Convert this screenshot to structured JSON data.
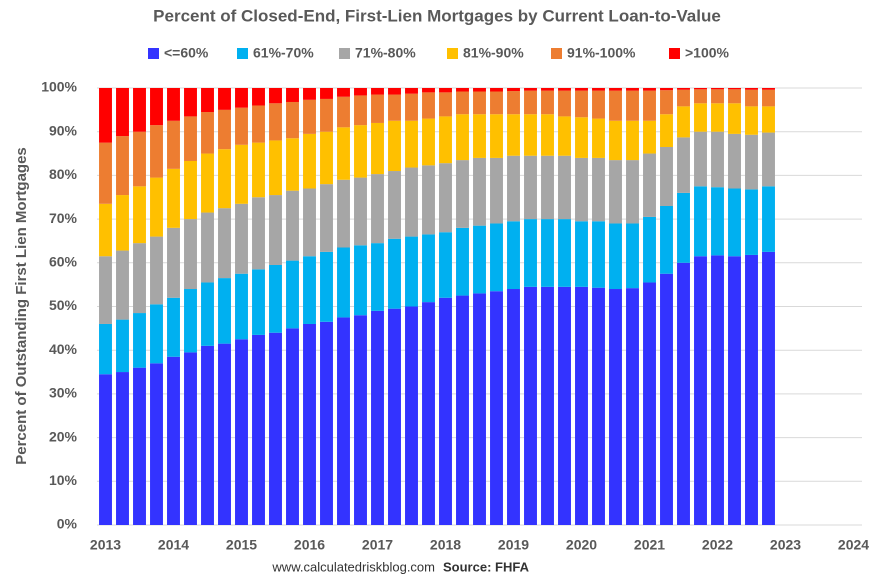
{
  "chart_data": {
    "type": "stacked_bar",
    "title": "Percent of Closed-End, First-Lien Mortgages by Current Loan-to-Value",
    "y_label": "Percent of Outstanding First Lien Mortgages",
    "footer": [
      "www.calculatedriskblog.com",
      "Source: FHFA"
    ],
    "x": [
      2013,
      2013.25,
      2013.5,
      2013.75,
      2014,
      2014.25,
      2014.5,
      2014.75,
      2015,
      2015.25,
      2015.5,
      2015.75,
      2016,
      2016.25,
      2016.5,
      2016.75,
      2017,
      2017.25,
      2017.5,
      2017.75,
      2018,
      2018.25,
      2018.5,
      2018.75,
      2019,
      2019.25,
      2019.5,
      2019.75,
      2020,
      2020.25,
      2020.5,
      2020.75,
      2021,
      2021.25,
      2021.5,
      2021.75,
      2022,
      2022.25,
      2022.5,
      2022.75
    ],
    "xlim": [
      2012.875,
      2024.125
    ],
    "xticks": [
      2013,
      2014,
      2015,
      2016,
      2017,
      2018,
      2019,
      2020,
      2021,
      2022,
      2023,
      2024
    ],
    "ylim": [
      0,
      100
    ],
    "yticks": [
      {
        "value": 0,
        "label": "0%"
      },
      {
        "value": 10,
        "label": "10%"
      },
      {
        "value": 20,
        "label": "20%"
      },
      {
        "value": 30,
        "label": "30%"
      },
      {
        "value": 40,
        "label": "40%"
      },
      {
        "value": 50,
        "label": "50%"
      },
      {
        "value": 60,
        "label": "60%"
      },
      {
        "value": 70,
        "label": "70%"
      },
      {
        "value": 80,
        "label": "80%"
      },
      {
        "value": 90,
        "label": "90%"
      },
      {
        "value": 100,
        "label": "100%"
      }
    ],
    "grid": true,
    "legend": "top",
    "series": [
      {
        "name": "<=60%",
        "color": "#3333ff",
        "values": [
          34.5,
          35,
          36,
          37,
          38.5,
          39.5,
          41,
          41.5,
          42.5,
          43.5,
          44,
          45,
          46,
          46.5,
          47.5,
          48,
          49,
          49.5,
          50,
          51,
          52,
          52.5,
          53,
          53.5,
          54,
          54.5,
          54.5,
          54.5,
          54.5,
          54.3,
          54,
          54.2,
          55.5,
          57.5,
          60,
          61.5,
          61.7,
          61.5,
          61.8,
          62.5
        ]
      },
      {
        "name": "61%-70%",
        "color": "#00b0f0",
        "values": [
          11.5,
          12,
          12.5,
          13.5,
          13.5,
          14.5,
          14.5,
          15,
          15,
          15,
          15.5,
          15.5,
          15.5,
          16,
          16,
          16,
          15.5,
          16,
          16,
          15.5,
          15,
          15.5,
          15.5,
          15.5,
          15.5,
          15.5,
          15.5,
          15.5,
          15,
          15.2,
          15,
          14.8,
          15,
          15.5,
          16,
          16,
          15.6,
          15.5,
          15,
          15
        ]
      },
      {
        "name": "71%-80%",
        "color": "#a6a6a6",
        "values": [
          15.5,
          15.8,
          16,
          15.5,
          16,
          16,
          16,
          16,
          16,
          16.5,
          16,
          16,
          15.5,
          15.5,
          15.5,
          15.5,
          15.8,
          15.5,
          15.8,
          15.8,
          15.8,
          15.5,
          15.5,
          15,
          15,
          14.5,
          14.5,
          14.5,
          14.5,
          14.5,
          14.5,
          14.5,
          14.5,
          13.5,
          12.7,
          12.5,
          12.7,
          12.5,
          12.5,
          12.3
        ]
      },
      {
        "name": "81%-90%",
        "color": "#ffc000",
        "values": [
          12,
          12.7,
          13,
          13.5,
          13.5,
          13.3,
          13.5,
          13.5,
          13.5,
          12.5,
          12.5,
          12,
          12.5,
          12,
          12,
          12,
          11.7,
          11.5,
          10.7,
          10.7,
          10.7,
          10.5,
          10,
          10,
          9.5,
          9.5,
          9.5,
          9,
          9.3,
          9,
          9,
          9,
          7.5,
          7.5,
          7.1,
          6.5,
          6.5,
          7,
          6.5,
          6
        ]
      },
      {
        "name": "91%-100%",
        "color": "#ed7d31",
        "values": [
          14,
          13.5,
          12.5,
          12,
          11,
          10.2,
          9.5,
          9,
          8.5,
          8.5,
          8.5,
          8.3,
          7.8,
          7.5,
          7,
          6.8,
          6.5,
          6,
          6.2,
          6,
          5.5,
          5.2,
          5.2,
          5.2,
          5.3,
          5.4,
          5.4,
          5.9,
          6.1,
          6.4,
          6.9,
          6.9,
          6.9,
          5.5,
          3.8,
          3.2,
          3.2,
          3.2,
          3.8,
          3.8
        ]
      },
      {
        "name": ">100%",
        "color": "#ff0000",
        "values": [
          12.5,
          11,
          10,
          8.5,
          7.5,
          6.5,
          5.5,
          5,
          4.5,
          4,
          3.5,
          3.2,
          2.7,
          2.5,
          2,
          1.7,
          1.5,
          1.5,
          1.3,
          1,
          1,
          0.8,
          0.8,
          0.8,
          0.7,
          0.6,
          0.6,
          0.6,
          0.6,
          0.6,
          0.6,
          0.6,
          0.6,
          0.5,
          0.4,
          0.3,
          0.3,
          0.3,
          0.4,
          0.4
        ]
      }
    ]
  }
}
